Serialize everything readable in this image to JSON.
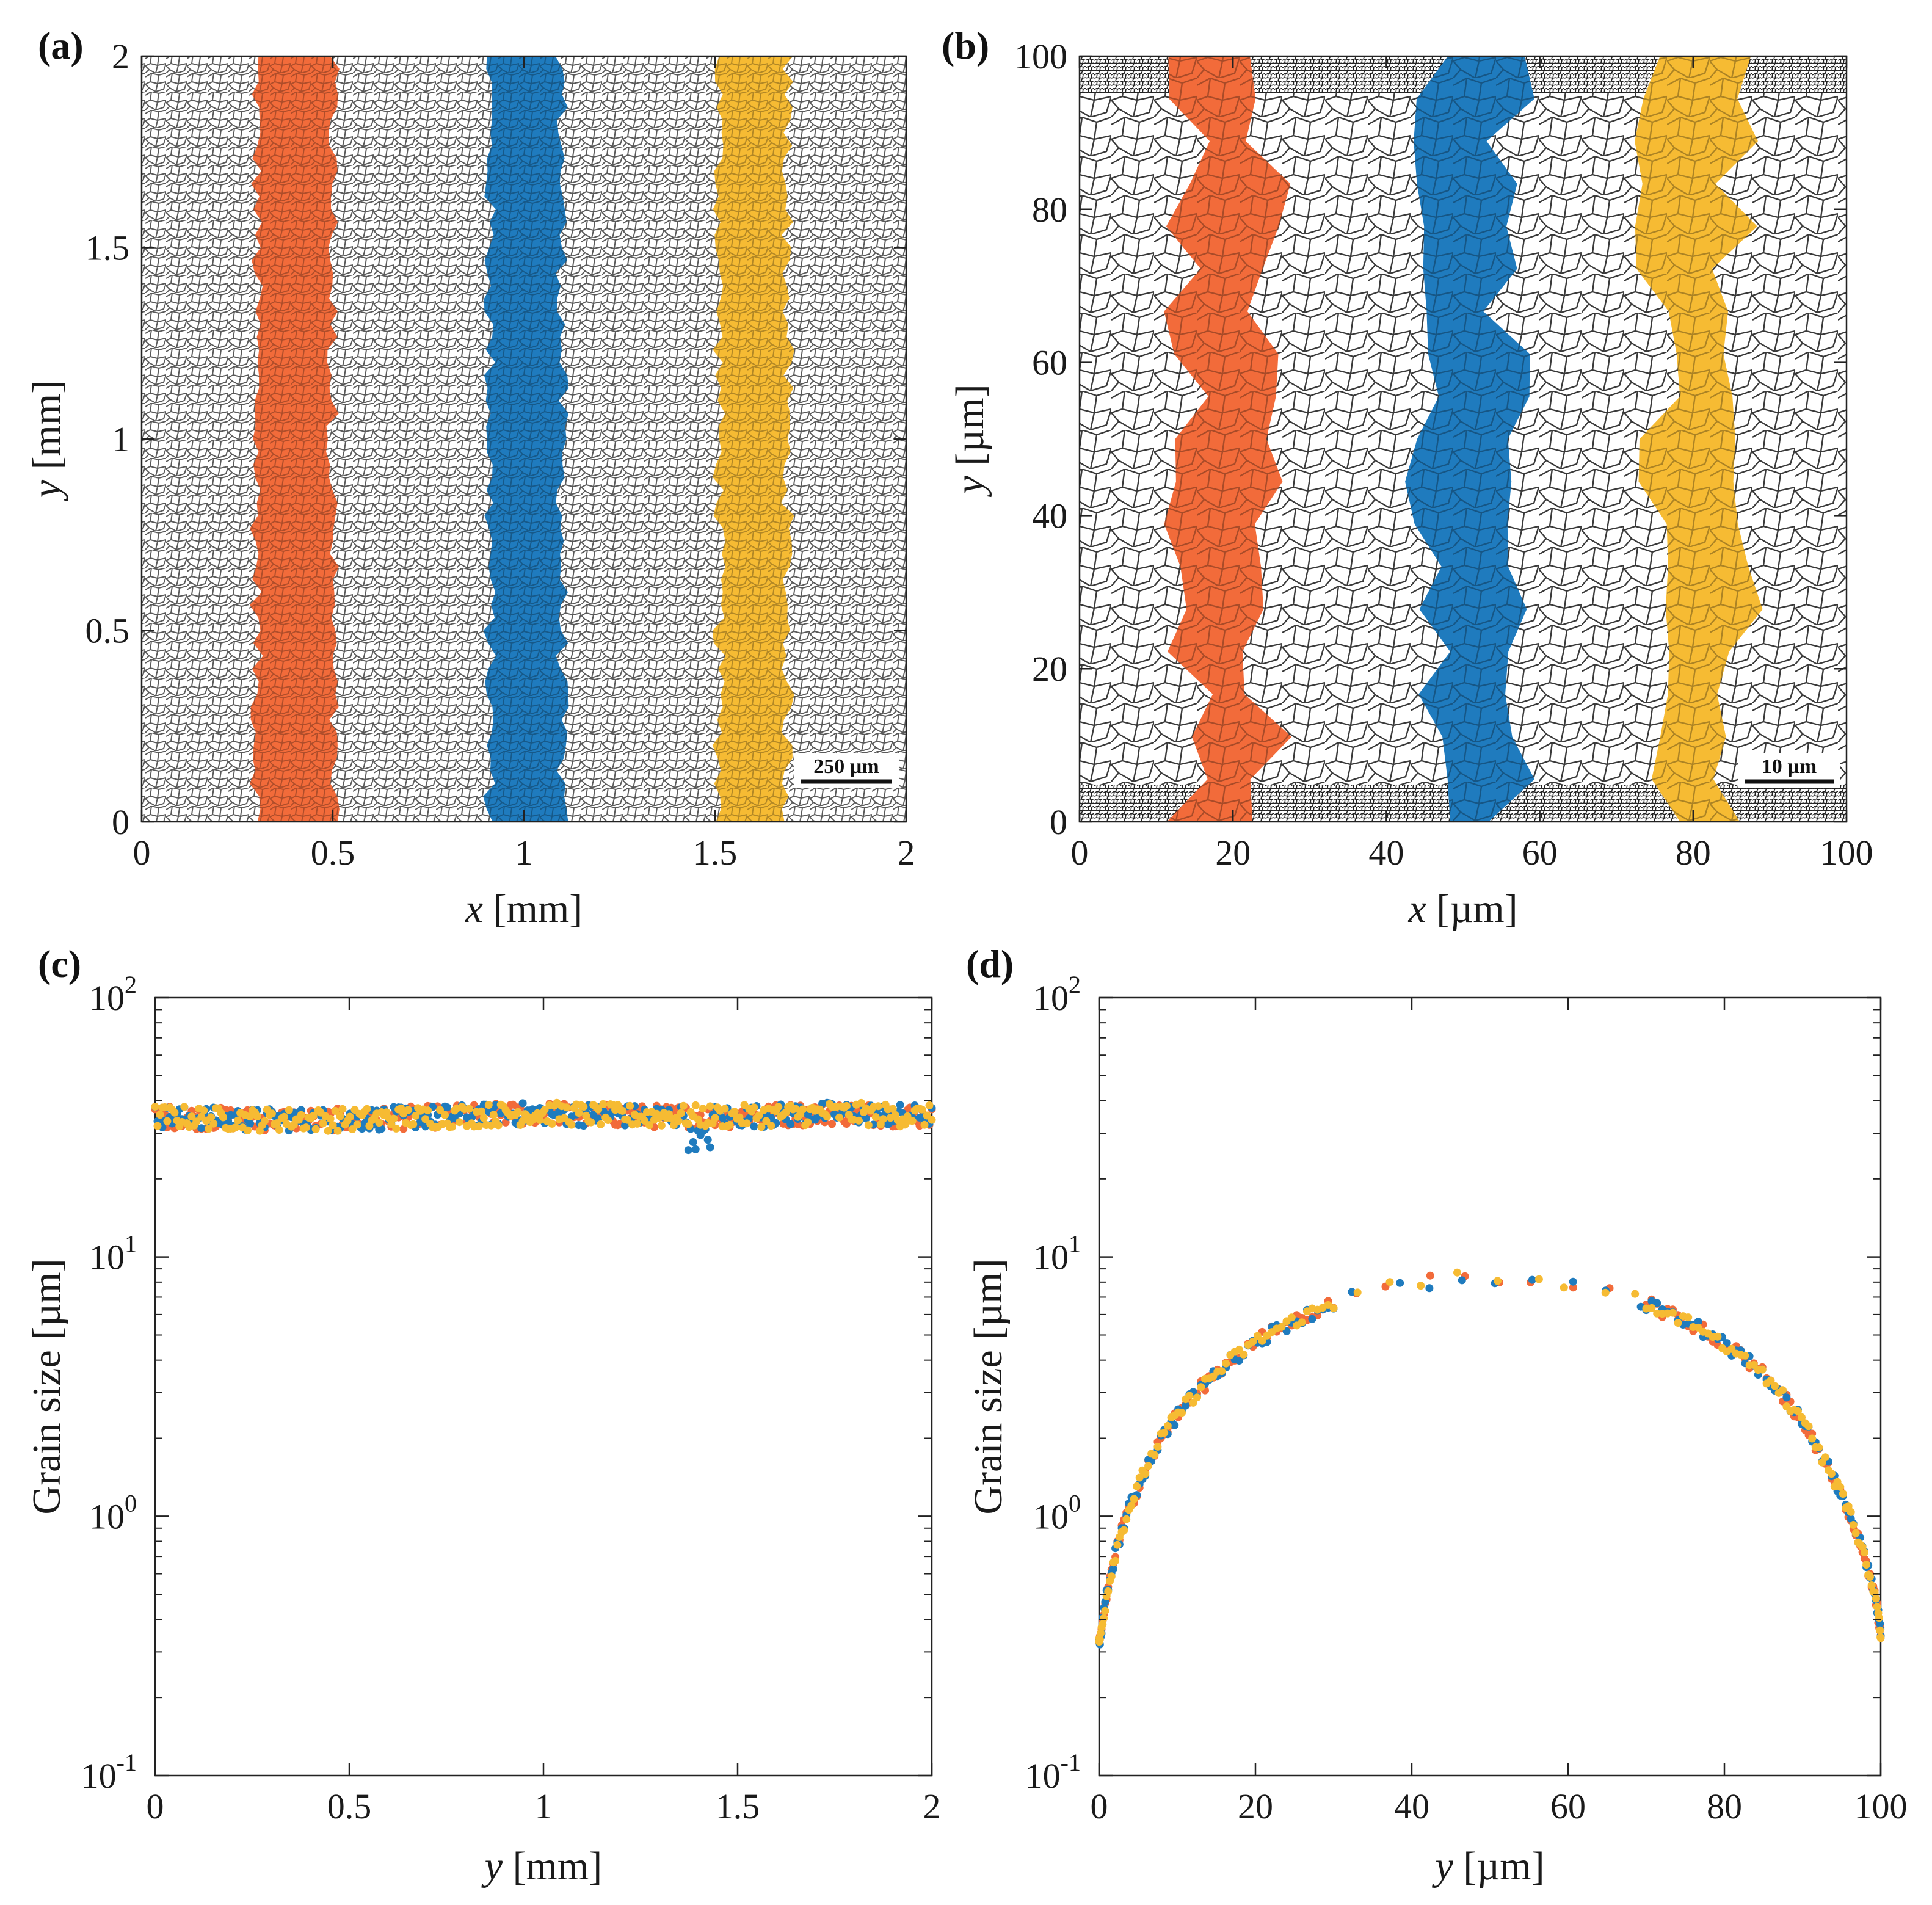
{
  "colors": {
    "series1": "#F26B3A",
    "series2": "#1F7BBE",
    "series3": "#F6BB33"
  },
  "panels": {
    "a": {
      "label": "(a)",
      "xlabel": "x [mm]",
      "xlabel_var": "x",
      "xlabel_unit": " [mm]",
      "ylabel": "y [mm]",
      "ylabel_var": "y",
      "ylabel_unit": " [mm]",
      "xticks": [
        "0",
        "0.5",
        "1",
        "1.5",
        "2"
      ],
      "yticks": [
        "0",
        "0.5",
        "1",
        "1.5",
        "2"
      ],
      "xlim": [
        0,
        2
      ],
      "ylim": [
        0,
        2
      ],
      "scale_bar": "250 µm",
      "bands_x_mm": [
        [
          0.3,
          0.5
        ],
        [
          0.91,
          1.1
        ],
        [
          1.51,
          1.69
        ]
      ]
    },
    "b": {
      "label": "(b)",
      "xlabel": "x [µm]",
      "xlabel_var": "x",
      "xlabel_unit": " [µm]",
      "ylabel": "y [µm]",
      "ylabel_var": "y",
      "ylabel_unit": " [µm]",
      "xticks": [
        "0",
        "20",
        "40",
        "60",
        "80",
        "100"
      ],
      "yticks": [
        "0",
        "20",
        "40",
        "60",
        "80",
        "100"
      ],
      "xlim": [
        0,
        100
      ],
      "ylim": [
        0,
        100
      ],
      "scale_bar": "10 µm",
      "bands_x_um": [
        [
          14.5,
          24.5
        ],
        [
          45,
          56
        ],
        [
          75,
          86
        ]
      ]
    },
    "c": {
      "label": "(c)",
      "xlabel": "y [mm]",
      "xlabel_var": "y",
      "xlabel_unit": " [mm]",
      "ylabel": "Grain size [µm]",
      "xticks": [
        "0",
        "0.5",
        "1",
        "1.5",
        "2"
      ],
      "yticks_base": [
        "10",
        "10",
        "10",
        "10"
      ],
      "yticks_exp": [
        "-1",
        "0",
        "1",
        "2"
      ]
    },
    "d": {
      "label": "(d)",
      "xlabel": "y [µm]",
      "xlabel_var": "y",
      "xlabel_unit": " [µm]",
      "ylabel": "Grain size [µm]",
      "xticks": [
        "0",
        "20",
        "40",
        "60",
        "80",
        "100"
      ],
      "yticks_base": [
        "10",
        "10",
        "10",
        "10"
      ],
      "yticks_exp": [
        "-1",
        "0",
        "1",
        "2"
      ]
    }
  },
  "chart_data": [
    {
      "panel": "c",
      "type": "scatter",
      "title": "",
      "xlabel": "y [mm]",
      "ylabel": "Grain size [µm]",
      "xlim": [
        0,
        2
      ],
      "ylim": [
        0.1,
        100
      ],
      "yscale": "log",
      "series": [
        {
          "name": "band 1 (orange)",
          "color": "#F26B3A",
          "description": "approximately constant near 33–38 µm across y = 0 to 2 mm"
        },
        {
          "name": "band 2 (blue)",
          "color": "#1F7BBE",
          "description": "approximately constant near 30–40 µm with a dip to ~27 µm at y ≈ 1.4 mm"
        },
        {
          "name": "band 3 (yellow)",
          "color": "#F6BB33",
          "description": "approximately constant near 32–38 µm across y = 0 to 2 mm"
        }
      ],
      "profile": {
        "x": [
          0,
          0.25,
          0.5,
          0.75,
          1.0,
          1.25,
          1.5,
          1.75,
          2.0
        ],
        "y": [
          35,
          34,
          34,
          35,
          36,
          35,
          35,
          36,
          35
        ]
      }
    },
    {
      "panel": "d",
      "type": "scatter",
      "title": "",
      "xlabel": "y [µm]",
      "ylabel": "Grain size [µm]",
      "xlim": [
        0,
        100
      ],
      "ylim": [
        0.1,
        100
      ],
      "yscale": "log",
      "series": [
        {
          "name": "band 1 (orange)",
          "color": "#F26B3A"
        },
        {
          "name": "band 2 (blue)",
          "color": "#1F7BBE"
        },
        {
          "name": "band 3 (yellow)",
          "color": "#F6BB33"
        }
      ],
      "profile": {
        "x": [
          0,
          0.5,
          1,
          2,
          3,
          5,
          8,
          12,
          16,
          20,
          25,
          30,
          35,
          40,
          45,
          50,
          55,
          60,
          65,
          70,
          75,
          80,
          84,
          88,
          92,
          95,
          97,
          98,
          99,
          99.5,
          100
        ],
        "y": [
          0.32,
          0.4,
          0.5,
          0.7,
          0.9,
          1.3,
          2.0,
          2.9,
          3.8,
          4.7,
          5.7,
          6.6,
          7.3,
          7.9,
          8.2,
          8.4,
          8.2,
          7.9,
          7.3,
          6.6,
          5.7,
          4.6,
          3.8,
          2.8,
          1.8,
          1.2,
          0.85,
          0.68,
          0.52,
          0.45,
          0.35
        ]
      }
    }
  ]
}
